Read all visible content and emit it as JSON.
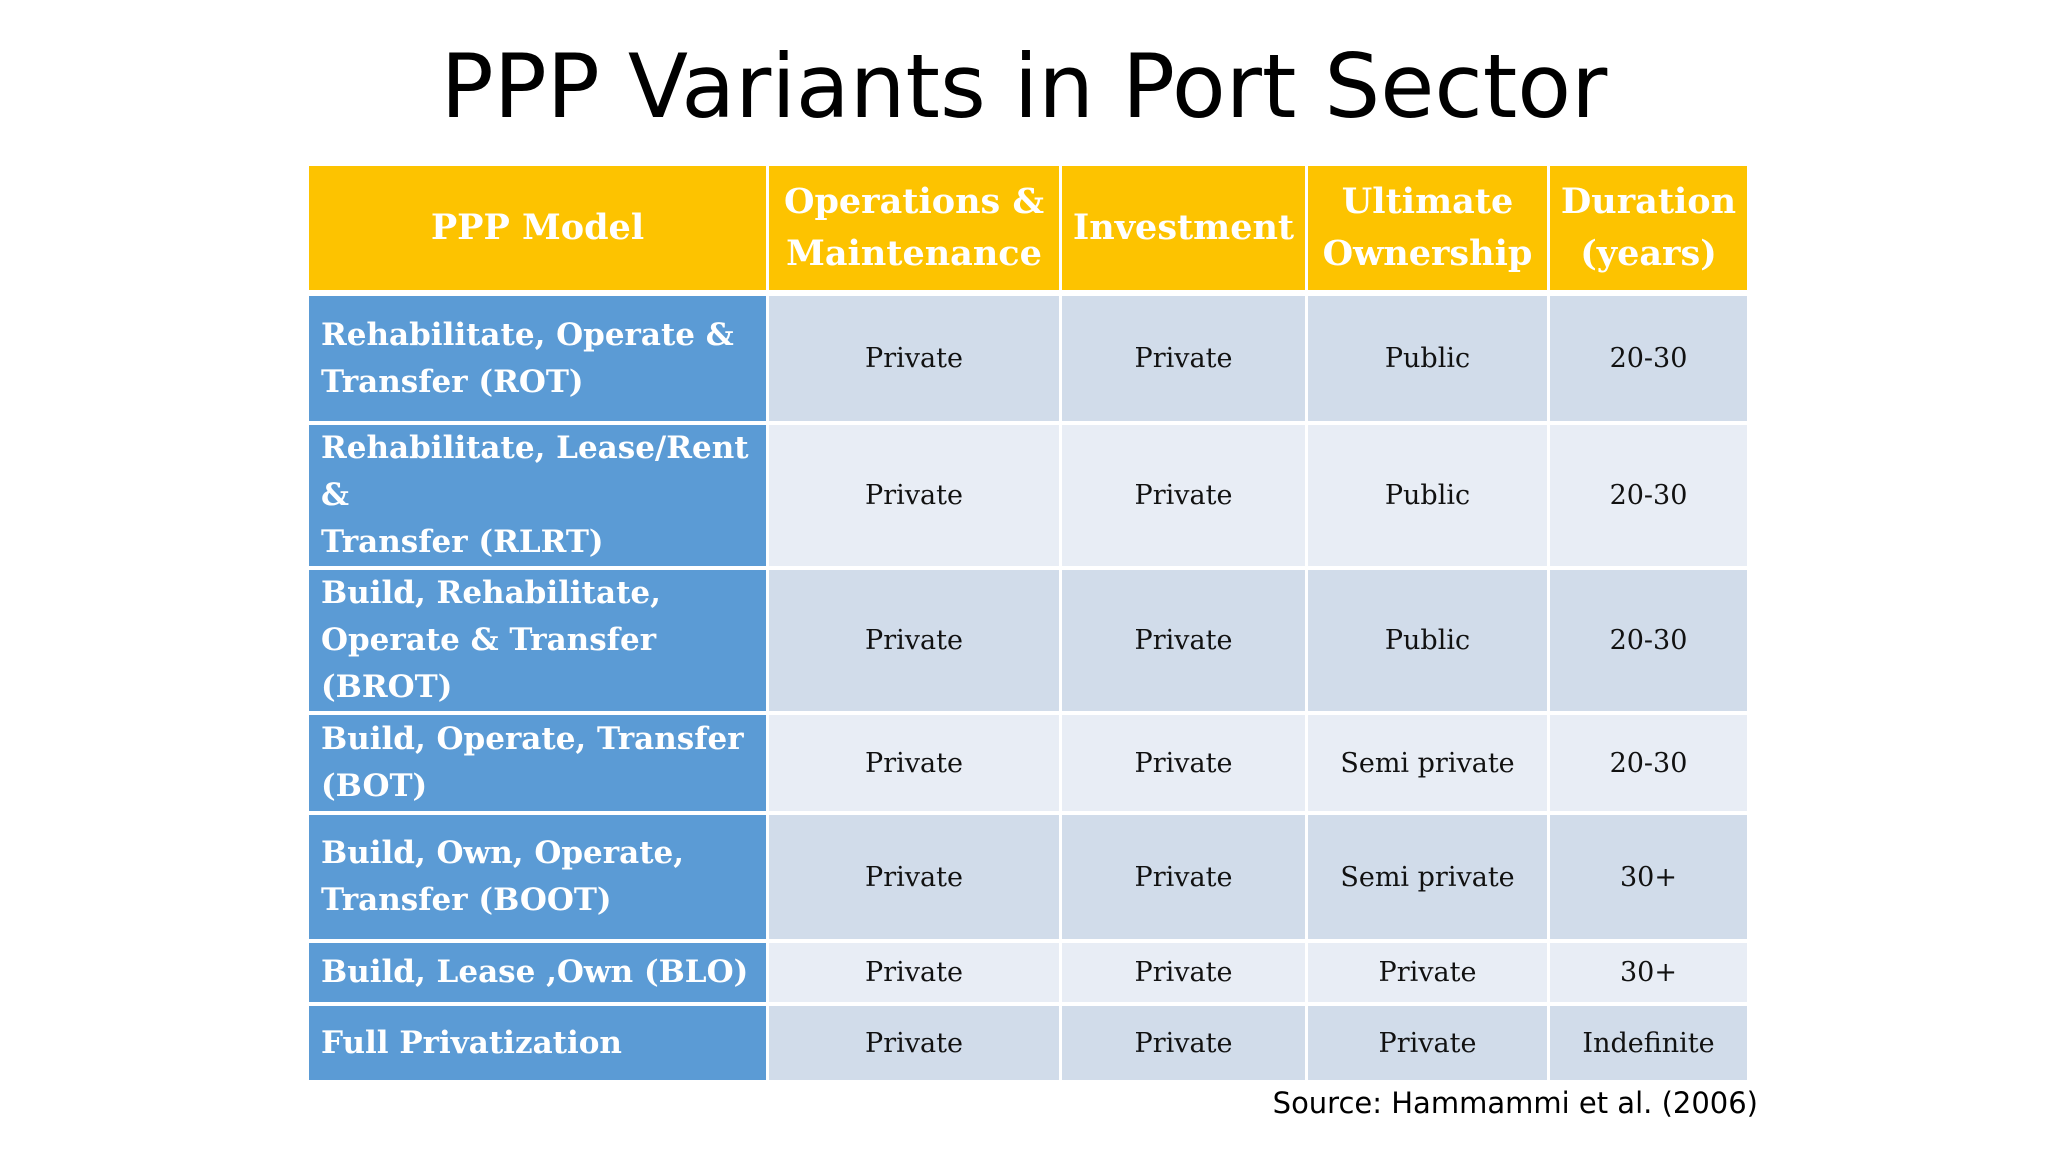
{
  "title": "PPP Variants in Port Sector",
  "table": {
    "headers": [
      {
        "line1": "PPP Model",
        "line2": ""
      },
      {
        "line1": "Operations &",
        "line2": "Maintenance"
      },
      {
        "line1": "Investment",
        "line2": ""
      },
      {
        "line1": "Ultimate",
        "line2": "Ownership"
      },
      {
        "line1": "Duration",
        "line2": "(years)"
      }
    ],
    "rows": [
      {
        "model_line1": "Rehabilitate, Operate &",
        "model_line2": "Transfer (ROT)",
        "om": "Private",
        "investment": "Private",
        "ownership": "Public",
        "duration": "20-30"
      },
      {
        "model_line1": "Rehabilitate, Lease/Rent &",
        "model_line2": "Transfer (RLRT)",
        "om": "Private",
        "investment": "Private",
        "ownership": "Public",
        "duration": "20-30"
      },
      {
        "model_line1": "Build, Rehabilitate,",
        "model_line2": "Operate & Transfer (BROT)",
        "om": "Private",
        "investment": "Private",
        "ownership": "Public",
        "duration": "20-30"
      },
      {
        "model_line1": "Build, Operate, Transfer",
        "model_line2": "(BOT)",
        "om": "Private",
        "investment": "Private",
        "ownership": "Semi private",
        "duration": "20-30"
      },
      {
        "model_line1": "Build, Own, Operate,",
        "model_line2": "Transfer (BOOT)",
        "om": "Private",
        "investment": "Private",
        "ownership": "Semi private",
        "duration": "30+"
      },
      {
        "model_line1": "Build, Lease ,Own (BLO)",
        "model_line2": "",
        "om": "Private",
        "investment": "Private",
        "ownership": "Private",
        "duration": "30+"
      },
      {
        "model_line1": "Full Privatization",
        "model_line2": "",
        "om": "Private",
        "investment": "Private",
        "ownership": "Private",
        "duration": "Indefinite"
      }
    ]
  },
  "source": "Source: Hammammi et al. (2006)"
}
